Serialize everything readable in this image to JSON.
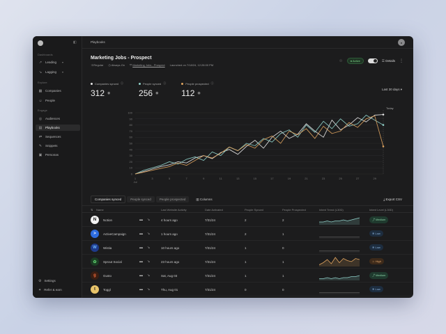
{
  "sidebar": {
    "sections": [
      {
        "title": "Dashboards",
        "items": [
          {
            "label": "Leading",
            "icon": "trend-icon"
          },
          {
            "label": "Lagging",
            "icon": "trend-down-icon"
          }
        ]
      },
      {
        "title": "Explore",
        "items": [
          {
            "label": "Companies",
            "icon": "building-icon"
          },
          {
            "label": "People",
            "icon": "people-icon"
          }
        ]
      },
      {
        "title": "Engage",
        "items": [
          {
            "label": "Audiences",
            "icon": "target-icon"
          },
          {
            "label": "Playbooks",
            "icon": "book-icon",
            "active": true
          },
          {
            "label": "Sequences",
            "icon": "arrows-icon"
          },
          {
            "label": "Snippets",
            "icon": "snippet-icon"
          },
          {
            "label": "Personas",
            "icon": "persona-icon"
          }
        ]
      }
    ],
    "footer": [
      {
        "label": "Settings",
        "icon": "gear-icon"
      },
      {
        "label": "Refer & earn",
        "icon": "gift-icon"
      }
    ]
  },
  "topbar": {
    "breadcrumb": "Playbooks"
  },
  "header": {
    "title": "Marketing Jobs - Prospect",
    "meta": {
      "type": "Regular",
      "schedule": "Always-On",
      "source": "Marketing Jobs - Prospect",
      "launched": "Launched on 7/18/24, 12:28:00 PM"
    },
    "status": "Active",
    "details_label": "Details"
  },
  "stats": [
    {
      "label": "Companies synced",
      "value": "312",
      "color": "#e8e8e8"
    },
    {
      "label": "People synced",
      "value": "256",
      "color": "#8fd0c9"
    },
    {
      "label": "People prospected",
      "value": "112",
      "color": "#e0a45f"
    }
  ],
  "range": "Last 30 days",
  "chart_data": {
    "type": "line",
    "x": [
      "1 Jul",
      "2",
      "3",
      "4",
      "5",
      "6",
      "7",
      "8",
      "9",
      "10",
      "11",
      "12",
      "13",
      "14",
      "15",
      "16",
      "17",
      "18",
      "19",
      "20",
      "21",
      "22",
      "23",
      "24",
      "25",
      "26",
      "27",
      "28",
      "29",
      "30"
    ],
    "x_ticks": [
      "1\nJul",
      "3",
      "5",
      "7",
      "9",
      "11",
      "13",
      "15",
      "17",
      "19",
      "21",
      "23",
      "25",
      "27",
      "29"
    ],
    "y_ticks": [
      "0",
      "10",
      "20",
      "30",
      "40",
      "50",
      "60",
      "70",
      "80",
      "90",
      "100"
    ],
    "ylim": [
      0,
      100
    ],
    "annotation": "Today",
    "series": [
      {
        "color": "#e8e8e8",
        "values": [
          0,
          4,
          8,
          12,
          15,
          20,
          18,
          26,
          30,
          25,
          35,
          40,
          32,
          45,
          55,
          42,
          60,
          70,
          58,
          65,
          82,
          70,
          60,
          88,
          72,
          80,
          92,
          85,
          96,
          97
        ]
      },
      {
        "color": "#8fd0c9",
        "values": [
          0,
          6,
          10,
          14,
          20,
          16,
          24,
          28,
          22,
          36,
          30,
          44,
          38,
          50,
          46,
          58,
          52,
          66,
          72,
          60,
          80,
          68,
          86,
          74,
          90,
          78,
          82,
          96,
          88,
          80
        ]
      },
      {
        "color": "#e0a45f",
        "values": [
          0,
          3,
          6,
          9,
          12,
          18,
          14,
          22,
          30,
          26,
          34,
          44,
          38,
          48,
          42,
          56,
          62,
          50,
          70,
          64,
          74,
          58,
          78,
          66,
          70,
          84,
          76,
          90,
          95,
          45
        ]
      }
    ]
  },
  "tabs": [
    "Companies synced",
    "People synced",
    "People prospected"
  ],
  "columns_label": "Columns",
  "export_label": "Export CSV",
  "table": {
    "headers": [
      "Name",
      "Last Website Activity",
      "Date Activated",
      "People Synced",
      "People Prospected",
      "Intent Trend (L30D)",
      "Intent Level (L30D)"
    ],
    "rows": [
      {
        "name": "Notion",
        "activity": "4 hours ago",
        "date": "7/31/24",
        "ps": "2",
        "pp": "2",
        "intent": "Medium",
        "logo_bg": "#f2f2f2",
        "logo_fg": "#111",
        "logo": "N",
        "trend": [
          2,
          2,
          3,
          2,
          3,
          3,
          4,
          3,
          4,
          5,
          6
        ]
      },
      {
        "name": "ActiveCampaign",
        "activity": "1 hours ago",
        "date": "7/31/24",
        "ps": "2",
        "pp": "1",
        "intent": "Low",
        "logo_bg": "#2d6cdf",
        "logo_fg": "#fff",
        "logo": ">",
        "trend": [
          1,
          1,
          1,
          1,
          1,
          1,
          1,
          1,
          1,
          1,
          1
        ]
      },
      {
        "name": "Wistia",
        "activity": "10 hours ago",
        "date": "7/31/24",
        "ps": "1",
        "pp": "0",
        "intent": "Low",
        "logo_bg": "#1e3a8a",
        "logo_fg": "#6bb6ff",
        "logo": "W",
        "trend": [
          1,
          1,
          1,
          1,
          1,
          1,
          1,
          1,
          1,
          1,
          1
        ]
      },
      {
        "name": "Sprout Social",
        "activity": "23 hours ago",
        "date": "7/31/24",
        "ps": "1",
        "pp": "1",
        "intent": "High",
        "logo_bg": "#1b3d23",
        "logo_fg": "#5fd06e",
        "logo": "✿",
        "trend": [
          1,
          3,
          6,
          2,
          8,
          3,
          7,
          5,
          4,
          7,
          6
        ]
      },
      {
        "name": "Gusto",
        "activity": "Sat, Aug 03",
        "date": "7/31/24",
        "ps": "1",
        "pp": "1",
        "intent": "Medium",
        "logo_bg": "#3a1e12",
        "logo_fg": "#f06a3a",
        "logo": "g",
        "trend": [
          1,
          1,
          2,
          1,
          2,
          1,
          2,
          2,
          3,
          3,
          4
        ]
      },
      {
        "name": "Toggl",
        "activity": "Thu, Aug 01",
        "date": "7/31/24",
        "ps": "0",
        "pp": "0",
        "intent": "Low",
        "logo_bg": "#e8c46a",
        "logo_fg": "#222",
        "logo": "t",
        "trend": [
          1,
          1,
          1,
          1,
          1,
          1,
          1,
          1,
          1,
          1,
          1
        ]
      }
    ]
  }
}
